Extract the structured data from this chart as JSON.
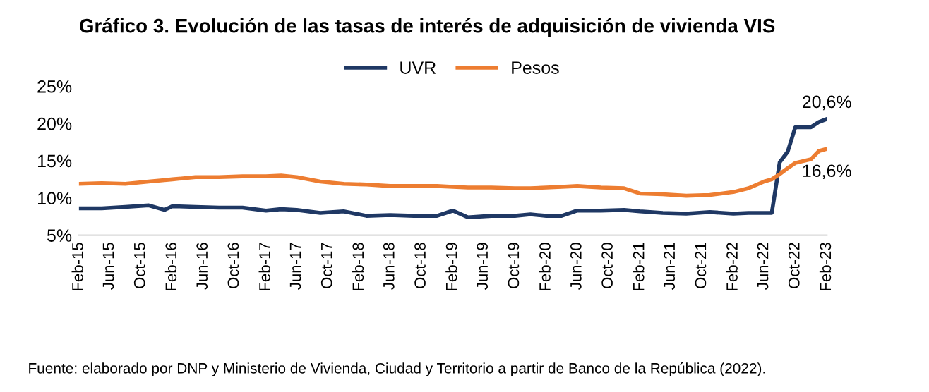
{
  "chart_data": {
    "type": "line",
    "title": "Gráfico 3. Evolución de las tasas de interés de adquisición de vivienda VIS",
    "x": [
      "2015-02",
      "2015-05",
      "2015-08",
      "2015-11",
      "2016-01",
      "2016-02",
      "2016-05",
      "2016-08",
      "2016-11",
      "2017-02",
      "2017-04",
      "2017-06",
      "2017-09",
      "2017-12",
      "2018-03",
      "2018-06",
      "2018-09",
      "2018-12",
      "2019-02",
      "2019-04",
      "2019-07",
      "2019-10",
      "2019-12",
      "2020-02",
      "2020-04",
      "2020-06",
      "2020-09",
      "2020-12",
      "2021-02",
      "2021-05",
      "2021-08",
      "2021-11",
      "2022-02",
      "2022-04",
      "2022-06",
      "2022-07",
      "2022-08",
      "2022-09",
      "2022-10",
      "2022-12",
      "2023-01",
      "2023-02"
    ],
    "series": [
      {
        "name": "UVR",
        "color": "#1f3864",
        "values": [
          8.6,
          8.6,
          8.8,
          9.0,
          8.4,
          8.9,
          8.8,
          8.7,
          8.7,
          8.3,
          8.5,
          8.4,
          8.0,
          8.2,
          7.6,
          7.7,
          7.6,
          7.6,
          8.3,
          7.4,
          7.6,
          7.6,
          7.8,
          7.6,
          7.6,
          8.3,
          8.3,
          8.4,
          8.2,
          8.0,
          7.9,
          8.1,
          7.9,
          8.0,
          8.0,
          8.0,
          14.8,
          16.2,
          19.5,
          19.5,
          20.2,
          20.6
        ]
      },
      {
        "name": "Pesos",
        "color": "#ed7d31",
        "values": [
          11.9,
          12.0,
          11.9,
          12.2,
          12.4,
          12.5,
          12.8,
          12.8,
          12.9,
          12.9,
          13.0,
          12.8,
          12.2,
          11.9,
          11.8,
          11.6,
          11.6,
          11.6,
          11.5,
          11.4,
          11.4,
          11.3,
          11.3,
          11.4,
          11.5,
          11.6,
          11.4,
          11.3,
          10.6,
          10.5,
          10.3,
          10.4,
          10.8,
          11.3,
          12.2,
          12.5,
          13.2,
          14.0,
          14.7,
          15.2,
          16.3,
          16.6
        ]
      }
    ],
    "ylim": [
      5,
      25
    ],
    "yticks": [
      {
        "value": 5,
        "label": "5%"
      },
      {
        "value": 10,
        "label": "10%"
      },
      {
        "value": 15,
        "label": "15%"
      },
      {
        "value": 20,
        "label": "20%"
      },
      {
        "value": 25,
        "label": "25%"
      }
    ],
    "xlim": [
      "2015-02",
      "2023-02"
    ],
    "xticks": [
      {
        "value": "2015-02",
        "label": "Feb-15"
      },
      {
        "value": "2015-06",
        "label": "Jun-15"
      },
      {
        "value": "2015-10",
        "label": "Oct-15"
      },
      {
        "value": "2016-02",
        "label": "Feb-16"
      },
      {
        "value": "2016-06",
        "label": "Jun-16"
      },
      {
        "value": "2016-10",
        "label": "Oct-16"
      },
      {
        "value": "2017-02",
        "label": "Feb-17"
      },
      {
        "value": "2017-06",
        "label": "Jun-17"
      },
      {
        "value": "2017-10",
        "label": "Oct-17"
      },
      {
        "value": "2018-02",
        "label": "Feb-18"
      },
      {
        "value": "2018-06",
        "label": "Jun-18"
      },
      {
        "value": "2018-10",
        "label": "Oct-18"
      },
      {
        "value": "2019-02",
        "label": "Feb-19"
      },
      {
        "value": "2019-06",
        "label": "Jun-19"
      },
      {
        "value": "2019-10",
        "label": "Oct-19"
      },
      {
        "value": "2020-02",
        "label": "Feb-20"
      },
      {
        "value": "2020-06",
        "label": "Jun-20"
      },
      {
        "value": "2020-10",
        "label": "Oct-20"
      },
      {
        "value": "2021-02",
        "label": "Feb-21"
      },
      {
        "value": "2021-06",
        "label": "Jun-21"
      },
      {
        "value": "2021-10",
        "label": "Oct-21"
      },
      {
        "value": "2022-02",
        "label": "Feb-22"
      },
      {
        "value": "2022-06",
        "label": "Jun-22"
      },
      {
        "value": "2022-10",
        "label": "Oct-22"
      },
      {
        "value": "2023-02",
        "label": "Feb-23"
      }
    ],
    "annotations": [
      {
        "text": "20,6%",
        "x": "2023-02",
        "y": 20.6
      },
      {
        "text": "16,6%",
        "x": "2023-02",
        "y": 16.6
      },
      "Fuente: elaborado por DNP y Ministerio de Vivienda, Ciudad y Territorio a partir de Banco de la República (2022)."
    ],
    "legend": "top",
    "grid": false
  }
}
